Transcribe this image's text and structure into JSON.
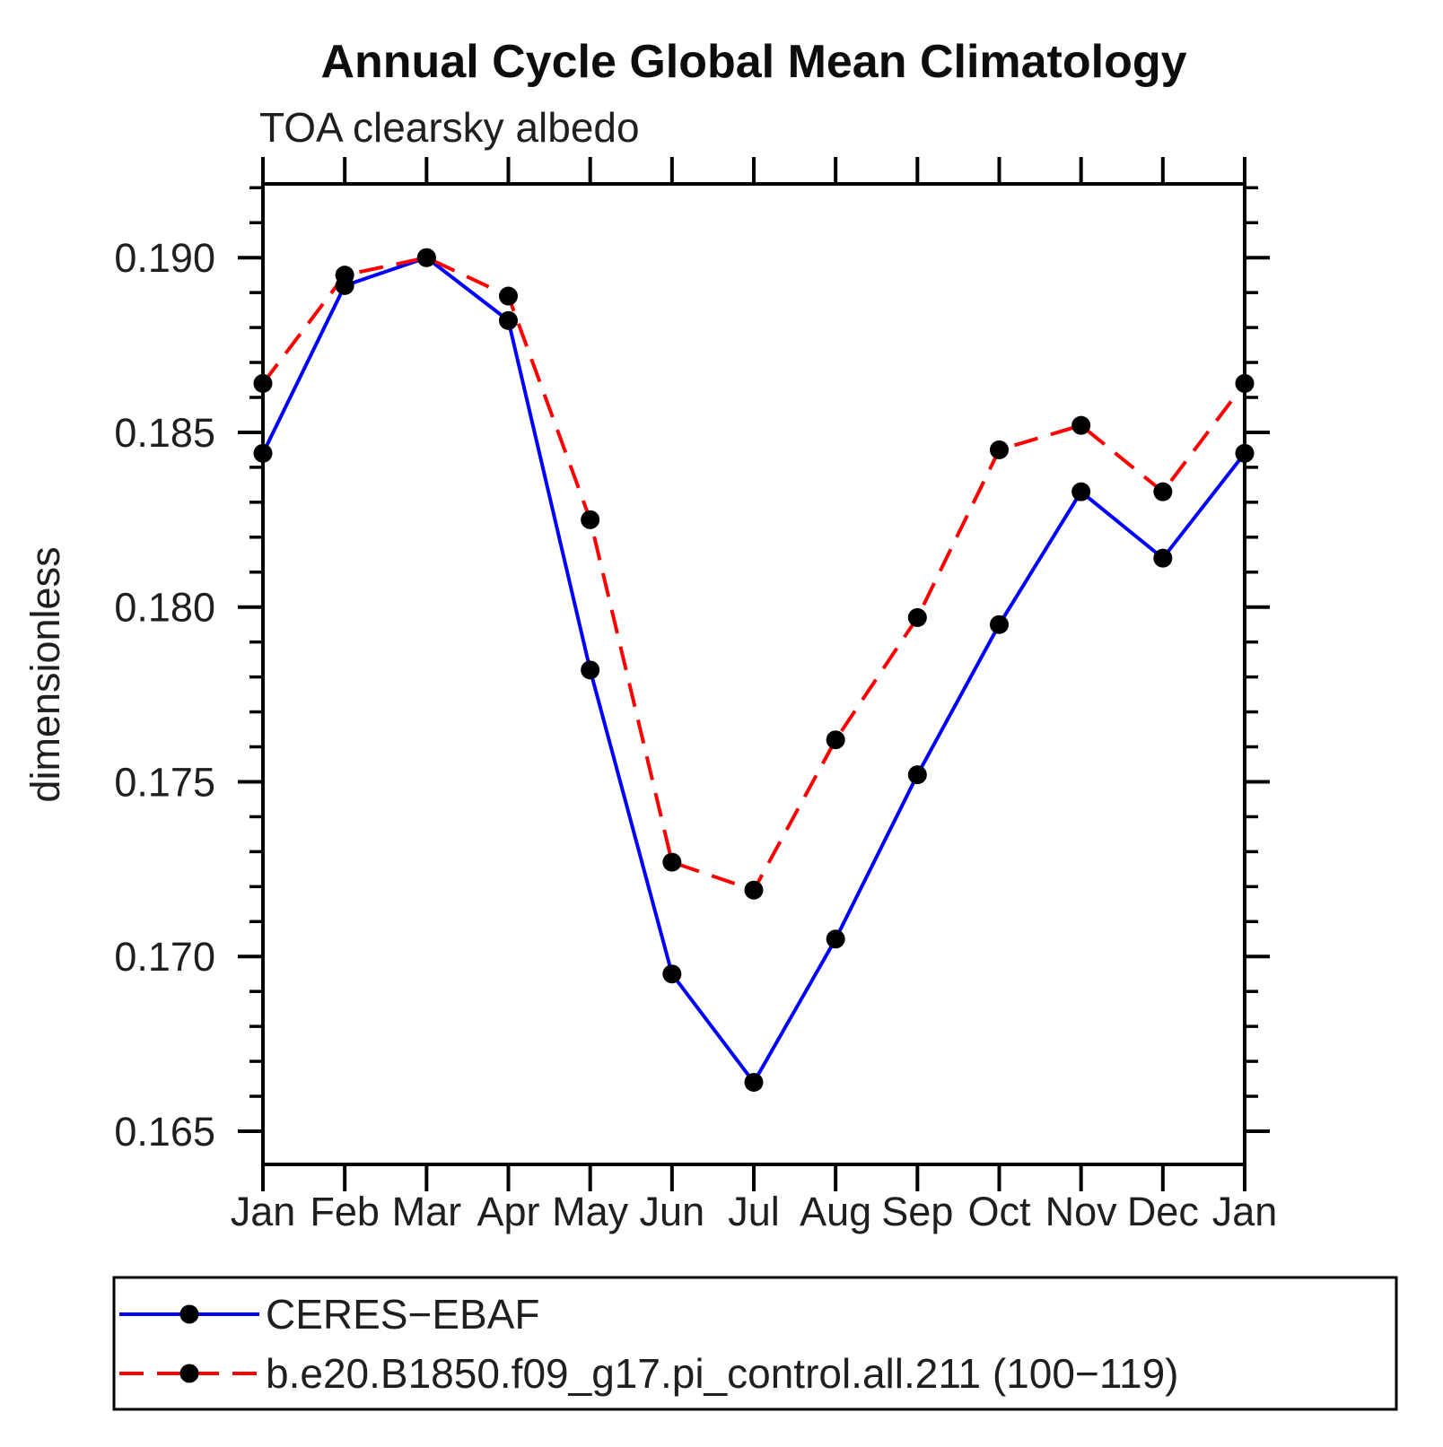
{
  "title": "Annual Cycle Global Mean Climatology",
  "subtitle": "TOA clearsky albedo",
  "chart_data": {
    "type": "line",
    "title": "Annual Cycle Global Mean Climatology",
    "subtitle": "TOA clearsky albedo",
    "xlabel": "",
    "ylabel": "dimensionless",
    "categories": [
      "Jan",
      "Feb",
      "Mar",
      "Apr",
      "May",
      "Jun",
      "Jul",
      "Aug",
      "Sep",
      "Oct",
      "Nov",
      "Dec",
      "Jan"
    ],
    "series": [
      {
        "name": "CERES-EBAF",
        "legend_label": "CERES−EBAF",
        "color": "#0000ff",
        "line_style": "solid",
        "marker": "filled-circle",
        "marker_color": "#000000",
        "values": [
          0.1844,
          0.1892,
          0.19,
          0.1882,
          0.1782,
          0.1695,
          0.1664,
          0.1705,
          0.1752,
          0.1795,
          0.1833,
          0.1814,
          0.1844
        ]
      },
      {
        "name": "b.e20.B1850.f09_g17.pi_control.all.211 (100-119)",
        "legend_label": "b.e20.B1850.f09_g17.pi_control.all.211 (100−119)",
        "color": "#ff0000",
        "line_style": "dashed",
        "marker": "filled-circle",
        "marker_color": "#000000",
        "values": [
          0.1864,
          0.1895,
          0.19,
          0.1889,
          0.1825,
          0.1727,
          0.1719,
          0.1762,
          0.1797,
          0.1845,
          0.1852,
          0.1833,
          0.1864
        ]
      }
    ],
    "ylim": [
      0.16405,
      0.19211
    ],
    "yticks": [
      {
        "value": 0.19,
        "label": "0.190"
      },
      {
        "value": 0.185,
        "label": "0.185"
      },
      {
        "value": 0.18,
        "label": "0.180"
      },
      {
        "value": 0.175,
        "label": "0.175"
      },
      {
        "value": 0.17,
        "label": "0.170"
      },
      {
        "value": 0.165,
        "label": "0.165"
      }
    ],
    "yticks_minor": {
      "start": 0.165,
      "end": 0.192,
      "step": 0.001
    },
    "grid": false,
    "legend_position": "bottom",
    "axis_color": "#000000"
  }
}
